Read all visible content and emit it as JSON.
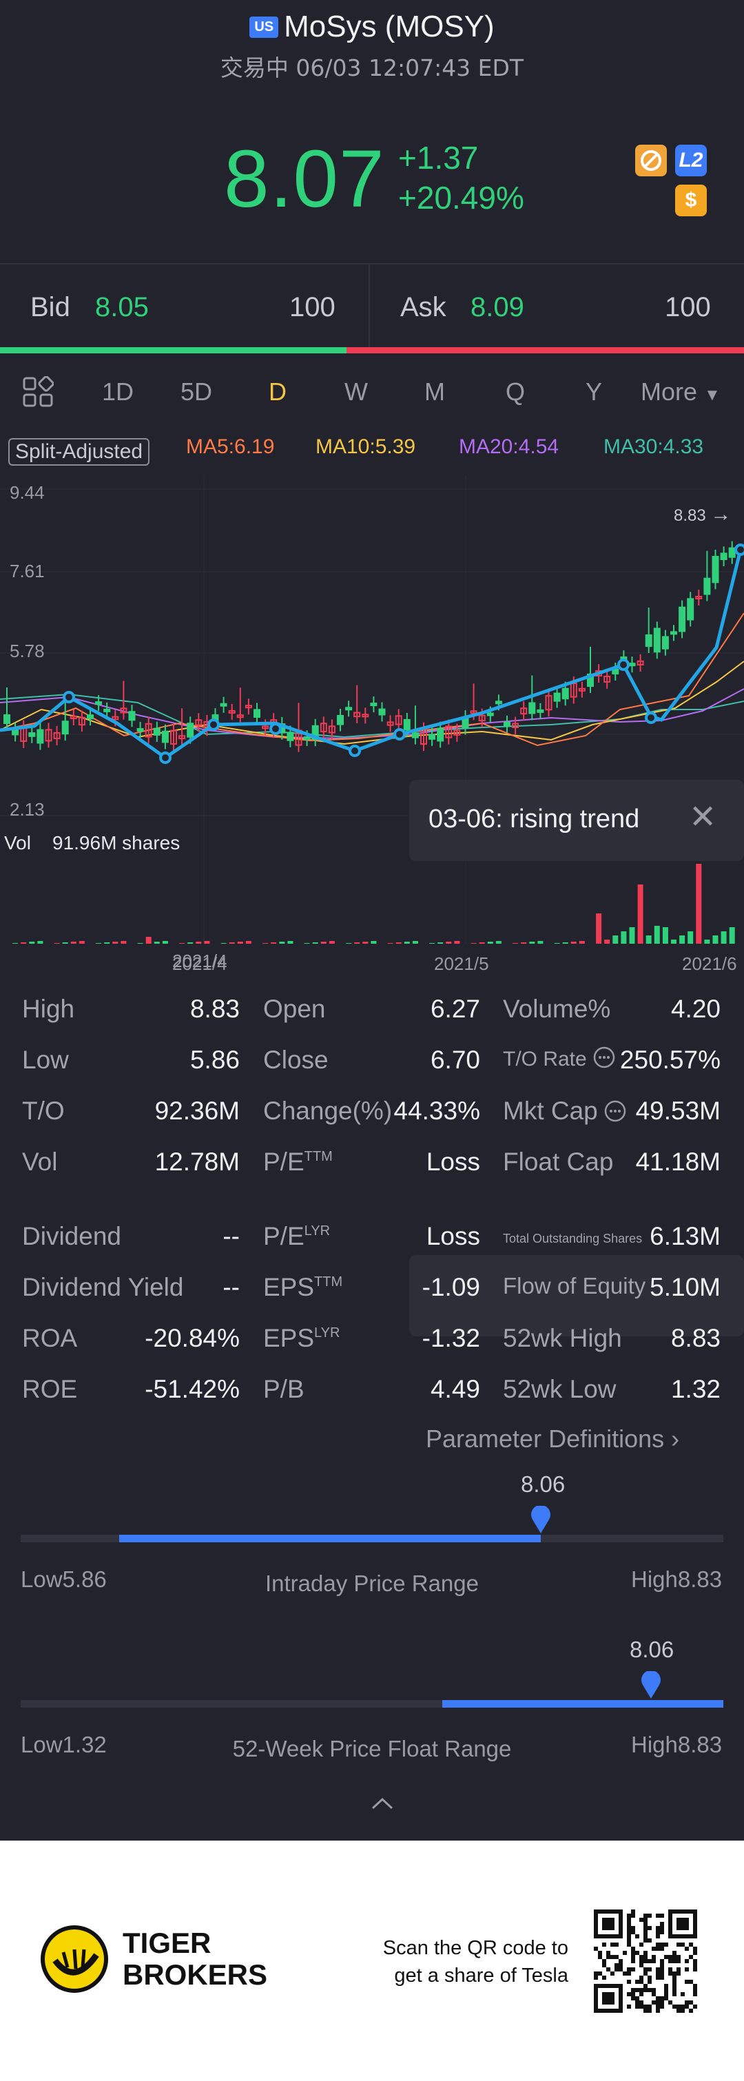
{
  "header": {
    "market_badge": "US",
    "title": "MoSys (MOSY)",
    "status_line": "交易中 06/03 12:07:43 EDT"
  },
  "quote": {
    "price": "8.07",
    "change": "+1.37",
    "change_pct": "+20.49%",
    "icons": [
      "tools-icon",
      "level2-icon",
      "dollar-icon"
    ],
    "l2_label": "L2",
    "dollar_label": "$"
  },
  "bidask": {
    "bid_label": "Bid",
    "bid_price": "8.05",
    "bid_qty": "100",
    "ask_label": "Ask",
    "ask_price": "8.09",
    "ask_qty": "100"
  },
  "tabs": {
    "items": [
      "1D",
      "5D",
      "D",
      "W",
      "M",
      "Q",
      "Y"
    ],
    "active": "D",
    "more": "More"
  },
  "chart_legend": {
    "split_adjusted": "Split-Adjusted",
    "ma5": "MA5:6.19",
    "ma10": "MA10:5.39",
    "ma20": "MA20:4.54",
    "ma30": "MA30:4.33"
  },
  "chart_axis": {
    "y_ticks": [
      "9.44",
      "7.61",
      "5.78",
      "2.13"
    ],
    "max_marker": "8.83",
    "vol_label": "Vol",
    "vol_value": "91.96M shares",
    "x_ticks": [
      "2021/4",
      "2021/5",
      "2021/6"
    ]
  },
  "tooltip": {
    "text": "03-06: rising trend"
  },
  "stats": {
    "col1": [
      {
        "label": "High",
        "value": "8.83"
      },
      {
        "label": "Low",
        "value": "5.86"
      },
      {
        "label": "T/O",
        "value": "92.36M"
      },
      {
        "label": "Vol",
        "value": "12.78M"
      },
      {
        "label": "Dividend",
        "value": "--"
      },
      {
        "label": "Dividend Yield",
        "value": "--"
      },
      {
        "label": "ROA",
        "value": "-20.84%"
      },
      {
        "label": "ROE",
        "value": "-51.42%"
      }
    ],
    "col2": [
      {
        "label": "Open",
        "sup": "",
        "value": "6.27"
      },
      {
        "label": "Close",
        "sup": "",
        "value": "6.70"
      },
      {
        "label": "Change(%)",
        "sup": "",
        "value": "44.33%"
      },
      {
        "label": "P/E",
        "sup": "TTM",
        "value": "Loss"
      },
      {
        "label": "P/E",
        "sup": "LYR",
        "value": "Loss"
      },
      {
        "label": "EPS",
        "sup": "TTM",
        "value": "-1.09"
      },
      {
        "label": "EPS",
        "sup": "LYR",
        "value": "-1.32"
      },
      {
        "label": "P/B",
        "sup": "",
        "value": "4.49"
      }
    ],
    "col3": [
      {
        "label": "Volume%",
        "value": "4.20"
      },
      {
        "label": "T/O Rate",
        "value": "250.57%"
      },
      {
        "label": "Mkt Cap",
        "value": "49.53M"
      },
      {
        "label": "Float Cap",
        "value": "41.18M"
      },
      {
        "label": "Total Outstanding Shares",
        "value": "6.13M"
      },
      {
        "label": "Flow of Equity",
        "value": "5.10M"
      },
      {
        "label": "52wk High",
        "value": "8.83"
      },
      {
        "label": "52wk Low",
        "value": "1.32"
      }
    ],
    "param_link": "Parameter Definitions"
  },
  "intraday_range": {
    "current": "8.06",
    "low_label": "Low",
    "low": "5.86",
    "high_label": "High",
    "high": "8.83",
    "title": "Intraday Price Range",
    "fill_from": 0.14,
    "fill_to": 0.74
  },
  "week52_range": {
    "current": "8.06",
    "low_label": "Low",
    "low": "1.32",
    "high_label": "High",
    "high": "8.83",
    "title": "52-Week Price Float Range",
    "fill_from": 0.6,
    "fill_to": 1.0,
    "marker": 0.895
  },
  "footer": {
    "brand_line1": "TIGER",
    "brand_line2": "BROKERS",
    "scan_text": "Scan the QR code to get a share of Tesla"
  },
  "colors": {
    "up": "#2fd17a",
    "down": "#ef3b54",
    "accent": "#3d7bf7",
    "active_tab": "#f5c544",
    "ma5": "#ff7a45",
    "ma10": "#f5c544",
    "ma20": "#b36cf2",
    "ma30": "#3fbfa7"
  }
}
